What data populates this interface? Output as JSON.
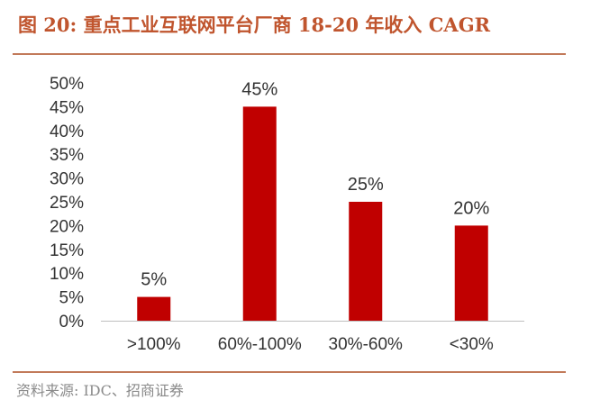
{
  "figure": {
    "title": "图 20:  重点工业互联网平台厂商 18-20 年收入 CAGR",
    "source": "资料来源:  IDC、招商证券"
  },
  "chart_data": {
    "type": "bar",
    "categories": [
      ">100%",
      "60%-100%",
      "30%-60%",
      "<30%"
    ],
    "values": [
      5,
      45,
      25,
      20
    ],
    "data_labels": [
      "5%",
      "45%",
      "25%",
      "20%"
    ],
    "title": "",
    "xlabel": "",
    "ylabel": "",
    "ylim": [
      0,
      50
    ],
    "y_ticks": [
      0,
      5,
      10,
      15,
      20,
      25,
      30,
      35,
      40,
      45,
      50
    ],
    "y_tick_labels": [
      "0%",
      "5%",
      "10%",
      "15%",
      "20%",
      "25%",
      "30%",
      "35%",
      "40%",
      "45%",
      "50%"
    ],
    "grid": false,
    "legend": "none",
    "bar_color": "#c00000",
    "axis_color": "#bfbfbf"
  }
}
